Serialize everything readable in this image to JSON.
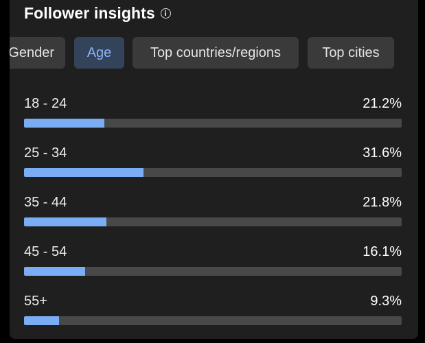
{
  "header": {
    "title": "Follower insights",
    "info_icon": "info-circle-icon"
  },
  "tabs": [
    {
      "label": "Gender",
      "active": false
    },
    {
      "label": "Age",
      "active": true
    },
    {
      "label": "Top countries/regions",
      "active": false
    },
    {
      "label": "Top cities",
      "active": false
    }
  ],
  "age_bars": [
    {
      "label": "18 - 24",
      "percent_text": "21.2%",
      "value": 21.2
    },
    {
      "label": "25 - 34",
      "percent_text": "31.6%",
      "value": 31.6
    },
    {
      "label": "35 - 44",
      "percent_text": "21.8%",
      "value": 21.8
    },
    {
      "label": "45 - 54",
      "percent_text": "16.1%",
      "value": 16.1
    },
    {
      "label": "55+",
      "percent_text": "9.3%",
      "value": 9.3
    }
  ],
  "colors": {
    "accent": "#7aadf3",
    "active_tab_bg": "#33435a",
    "panel_bg": "#1f1f1f",
    "track": "#484848"
  }
}
